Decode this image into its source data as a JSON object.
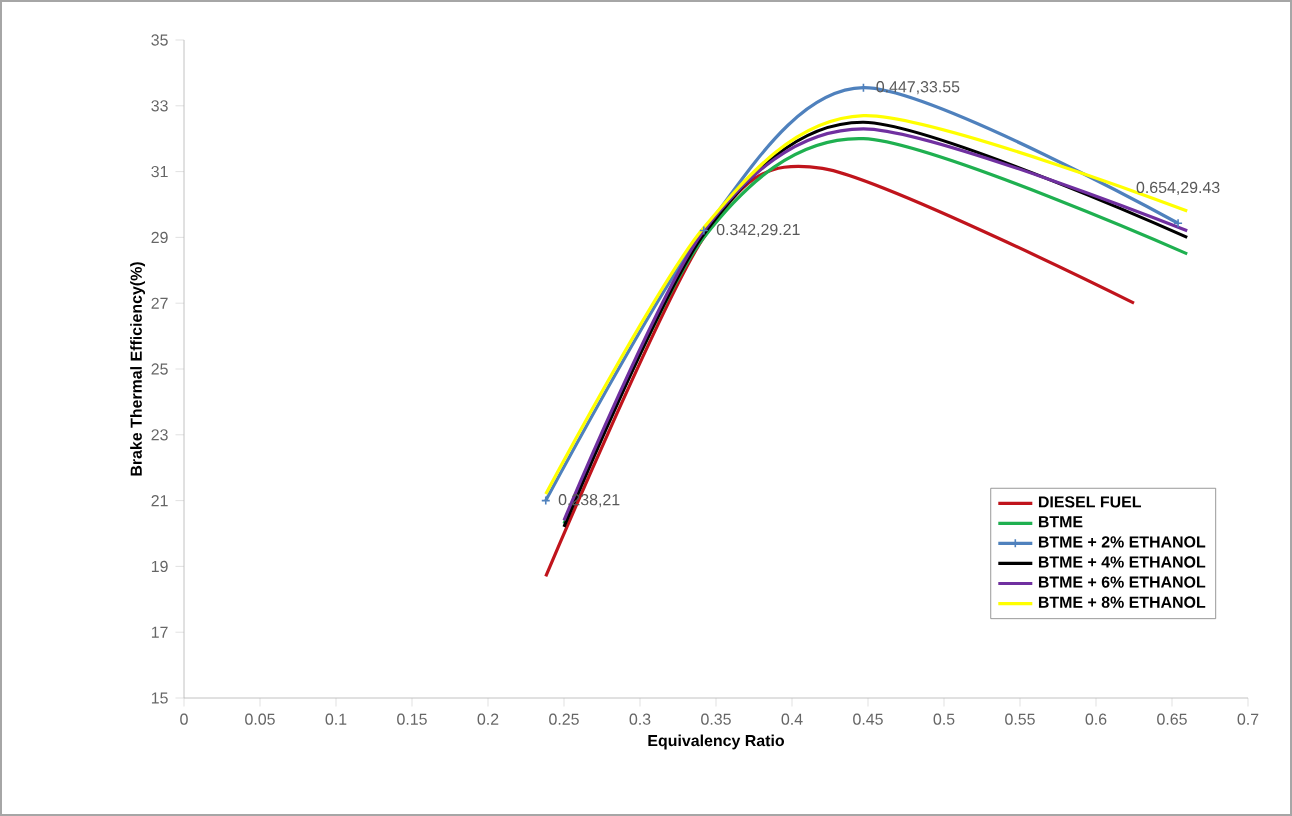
{
  "chart_data": {
    "type": "line",
    "xlabel": "Equivalency Ratio",
    "ylabel": "Brake Thermal Efficiency(%)",
    "xlim": [
      0,
      0.7
    ],
    "xticks": [
      0,
      0.05,
      0.1,
      0.15,
      0.2,
      0.25,
      0.3,
      0.35,
      0.4,
      0.45,
      0.5,
      0.55,
      0.6,
      0.65,
      0.7
    ],
    "ylim": [
      15,
      35
    ],
    "yticks": [
      15,
      17,
      19,
      21,
      23,
      25,
      27,
      29,
      31,
      33,
      35
    ],
    "grid": false,
    "legend": "bottom right",
    "marker": "none",
    "series": [
      {
        "name": "DIESEL FUEL",
        "color": "#c0141c",
        "x": [
          0.238,
          0.342,
          0.42,
          0.625
        ],
        "values": [
          18.7,
          29.0,
          31.1,
          27.0
        ]
      },
      {
        "name": "BTME",
        "color": "#1fb050",
        "x": [
          0.25,
          0.342,
          0.447,
          0.66
        ],
        "values": [
          20.3,
          29.0,
          32.0,
          28.5
        ]
      },
      {
        "name": "BTME + 2% ETHANOL",
        "color": "#4f81bd",
        "marker": "cross",
        "x": [
          0.238,
          0.342,
          0.447,
          0.654
        ],
        "values": [
          21,
          29.21,
          33.55,
          29.43
        ]
      },
      {
        "name": "BTME + 4% ETHANOL",
        "color": "#000000",
        "x": [
          0.25,
          0.342,
          0.447,
          0.66
        ],
        "values": [
          20.2,
          29.1,
          32.5,
          29.0
        ]
      },
      {
        "name": "BTME + 6% ETHANOL",
        "color": "#7030a0",
        "x": [
          0.25,
          0.342,
          0.447,
          0.66
        ],
        "values": [
          20.4,
          29.2,
          32.3,
          29.2
        ]
      },
      {
        "name": "BTME + 8% ETHANOL",
        "color": "#ffff00",
        "x": [
          0.238,
          0.342,
          0.447,
          0.66
        ],
        "values": [
          21.2,
          29.3,
          32.7,
          29.8
        ]
      }
    ],
    "annotations": [
      {
        "text": "0.238,21",
        "x": 0.238,
        "y": 21
      },
      {
        "text": "0.342,29.21",
        "x": 0.342,
        "y": 29.21
      },
      {
        "text": "0.447,33.55",
        "x": 0.447,
        "y": 33.55
      },
      {
        "text": "0.654,29.43",
        "x": 0.654,
        "y": 29.43
      }
    ]
  }
}
